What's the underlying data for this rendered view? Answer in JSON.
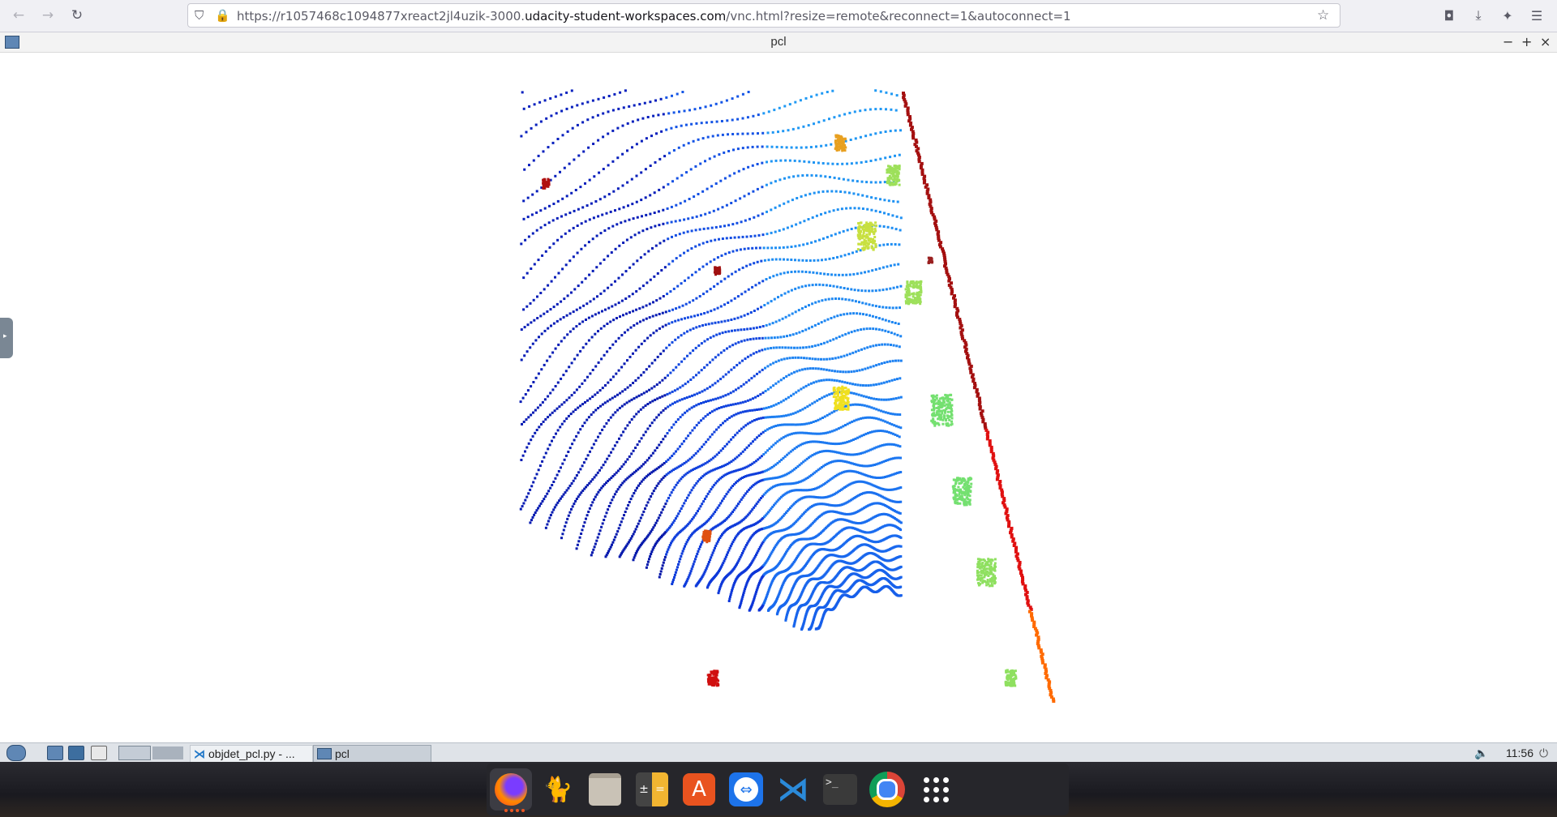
{
  "browser": {
    "url_prefix": "https://r1057468c1094877xreact2jl4uzik-3000.",
    "url_domain": "udacity-student-workspaces.com",
    "url_path": "/vnc.html?resize=remote&reconnect=1&autoconnect=1"
  },
  "window": {
    "title": "pcl"
  },
  "panel": {
    "tasks": [
      {
        "label": "objdet_pcl.py - ..."
      },
      {
        "label": "pcl"
      }
    ],
    "clock": "11:56"
  },
  "dock": {
    "items": [
      "Firefox",
      "Jupyter",
      "Files",
      "Calculator",
      "App Center",
      "TeamViewer",
      "Visual Studio Code",
      "Terminal",
      "Chrome",
      "Show Applications"
    ]
  },
  "colors": {
    "accent": "#e95420",
    "near": "#00109a",
    "mid": "#1a6df0",
    "far": "#22aaf5",
    "hot": "#e01010"
  }
}
